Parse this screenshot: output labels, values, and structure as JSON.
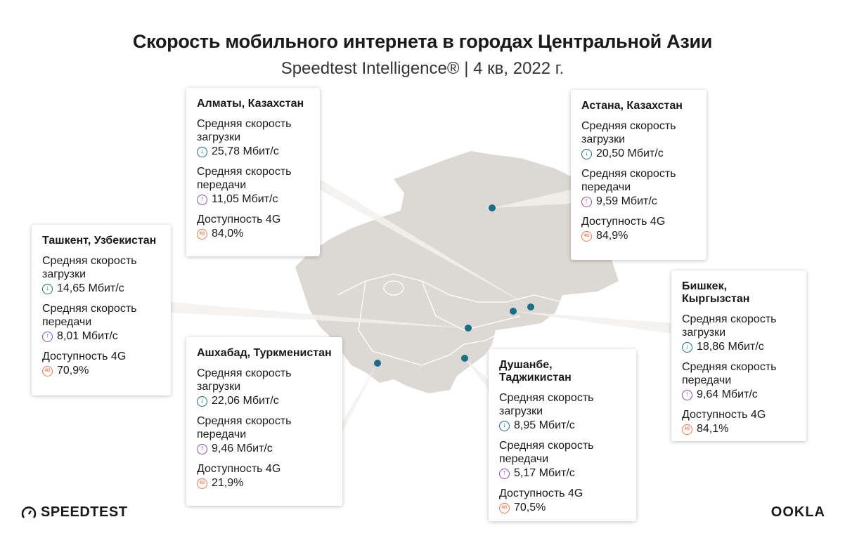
{
  "header": {
    "title": "Скорость мобильного интернета в городах Центральной Азии",
    "subtitle": "Speedtest Intelligence® | 4 кв, 2022 г."
  },
  "labels": {
    "download": "Средняя скорость загрузки",
    "upload": "Средняя скорость передачи",
    "availability": "Доступность 4G"
  },
  "cities": [
    {
      "name": "Алматы, Казахстан",
      "download": "25,78 Мбит/с",
      "upload": "11,05 Мбит/с",
      "availability": "84,0%"
    },
    {
      "name": "Астана, Казахстан",
      "download": "20,50 Мбит/с",
      "upload": "9,59 Мбит/с",
      "availability": "84,9%"
    },
    {
      "name": "Ташкент, Узбекистан",
      "download": "14,65 Мбит/с",
      "upload": "8,01 Мбит/с",
      "availability": "70,9%"
    },
    {
      "name": "Бишкек, Кыргызстан",
      "download": "18,86 Мбит/с",
      "upload": "9,64 Мбит/с",
      "availability": "84,1%"
    },
    {
      "name": "Ашхабад, Туркменистан",
      "download": "22,06 Мбит/с",
      "upload": "9,46 Мбит/с",
      "availability": "21,9%"
    },
    {
      "name": "Душанбе, Таджикистан",
      "download": "8,95 Мбит/с",
      "upload": "5,17 Мбит/с",
      "availability": "70,5%"
    }
  ],
  "icons": {
    "download": "arrow-down-circle-icon",
    "upload": "arrow-up-circle-icon",
    "availability": "4g-badge-icon"
  },
  "colors": {
    "map": "#dcd9d4",
    "dot": "#1c6d86",
    "download": "#1c6d86",
    "upload": "#8a4fb5",
    "availability": "#f0784a"
  },
  "footer": {
    "speedtest": "SPEEDTEST",
    "ookla": "OOKLA"
  }
}
